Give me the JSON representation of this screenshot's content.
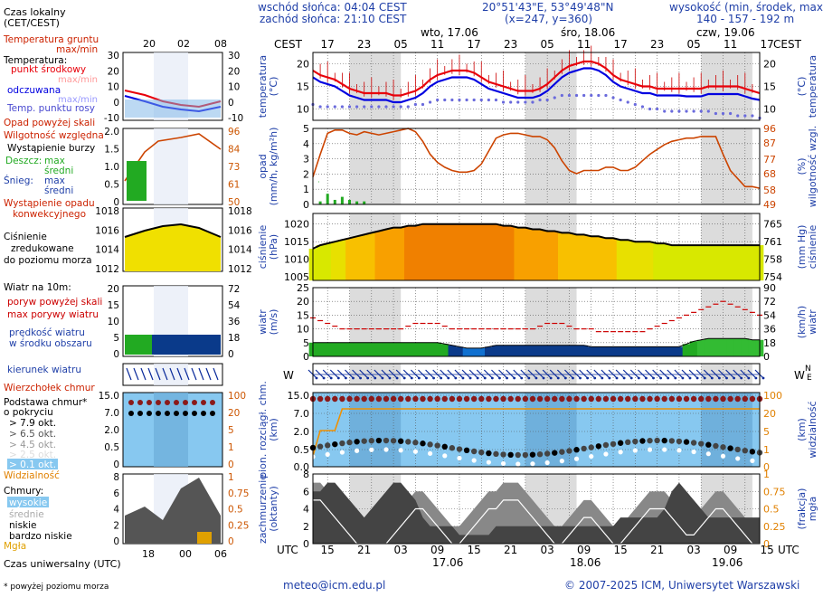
{
  "header": {
    "sunrise": "wschód słońca: 04:04 CEST",
    "sunset": "zachód słońca: 21:10 CEST",
    "coords": "20°51'43\"E, 53°49'48\"N",
    "grid": "(x=247, y=360)",
    "elev_title": "wysokość (min, środek, max)",
    "elev_values": "140 - 157 - 192 m",
    "tz_left": "CEST",
    "tz_right": "CEST",
    "utc_left": "UTC",
    "utc_right": "UTC",
    "days": [
      "wto, 17.06",
      "śro, 18.06",
      "czw, 19.06"
    ],
    "date_labels": [
      "17.06",
      "18.06",
      "19.06"
    ],
    "cest_ticks": [
      "17",
      "23",
      "05",
      "11",
      "17",
      "23",
      "05",
      "11",
      "17",
      "23",
      "05",
      "11",
      "17"
    ],
    "utc_ticks": [
      "15",
      "21",
      "03",
      "09",
      "15",
      "21",
      "03",
      "09",
      "15",
      "21",
      "03",
      "09",
      "15"
    ]
  },
  "legend": {
    "time_local": "Czas lokalny",
    "time_local2": "(CET/CEST)",
    "time_ticks": [
      "20",
      "02",
      "08"
    ],
    "time_utc": "Czas uniwersalny (UTC)",
    "utc_ticks": [
      "18",
      "00",
      "06"
    ],
    "temp_ground": "Temperatura gruntu",
    "temp_ground2": "max/min",
    "temp_title": "Temperatura:",
    "temp_mid": "punkt środkowy",
    "temp_maxmin": "max/min",
    "temp_feel": "odczuwana",
    "temp_feel_maxmin": "max/min",
    "temp_dew": "Temp. punktu rosy",
    "temp_axis_l": [
      "30",
      "20",
      "10",
      "0",
      "-10"
    ],
    "temp_axis_r": [
      "30",
      "20",
      "10",
      "0",
      "-10"
    ],
    "prec_above": "Opad powyżej skali",
    "humidity": "Wilgotność względna",
    "storm": "Wystąpienie burzy",
    "rain": "Deszcz:",
    "rain_max": "max",
    "rain_mid": "średni",
    "snow": "Śnieg:",
    "snow_max": "max",
    "snow_mid": "średni",
    "prec_occ": "Wystąpienie opadu",
    "prec_occ2": "konwekcyjnego",
    "prec_axis_l": [
      "2.0",
      "1.5",
      "1.0",
      "0.5",
      "0"
    ],
    "prec_axis_r": [
      "96",
      "84",
      "73",
      "61",
      "50"
    ],
    "pressure": "Ciśnienie",
    "pressure2": "zredukowane",
    "pressure3": "do poziomu morza",
    "pres_axis_l": [
      "1018",
      "1016",
      "1014",
      "1012"
    ],
    "pres_axis_r": [
      "1018",
      "1016",
      "1014",
      "1012"
    ],
    "wind_title": "Wiatr na 10m:",
    "gust_above": "poryw powyżej skali",
    "gust_max": "max porywy wiatru",
    "wind_speed": "prędkość wiatru",
    "wind_speed2": "w środku obszaru",
    "wind_axis_l": [
      "20",
      "15",
      "10",
      "5",
      "0"
    ],
    "wind_axis_r": [
      "72",
      "54",
      "36",
      "18",
      "0"
    ],
    "wind_dir": "kierunek wiatru",
    "cloud_top": "Wierzchołek chmur",
    "cloud_base": "Podstawa chmur*",
    "cloud_base2": "o pokryciu",
    "okt": [
      "> 7.9 okt.",
      "> 6.5 okt.",
      "> 4.5 okt.",
      "> 2.5 okt.",
      "> 0.1 okt."
    ],
    "visibility": "Widzialność",
    "cb_axis_l": [
      "15.0",
      "7.0",
      "2.0",
      "0.5",
      "0"
    ],
    "cb_axis_r": [
      "100",
      "20",
      "5",
      "1",
      "0"
    ],
    "clouds": "Chmury:",
    "cloud_high": "wysokie",
    "cloud_mid": "średnie",
    "cloud_low": "niskie",
    "cloud_vlow": "bardzo niskie",
    "fog": "Mgła",
    "cl_axis_l": [
      "8",
      "6",
      "4",
      "2",
      "0"
    ],
    "cl_axis_r": [
      "1",
      "0.75",
      "0.5",
      "0.25",
      "0"
    ],
    "footnote": "* powyżej poziomu morza"
  },
  "axes": {
    "temp_label": "temperatura",
    "temp_unit": "(°C)",
    "temp_ticks": [
      "20",
      "15",
      "10"
    ],
    "prec_label": "opad",
    "prec_unit": "(mm/h, kg/m²h)",
    "prec_ticks": [
      "5",
      "4",
      "3",
      "2",
      "1",
      "0"
    ],
    "hum_label": "wilgotność wzgl.",
    "hum_unit": "(%)",
    "hum_ticks": [
      "96",
      "87",
      "77",
      "68",
      "58",
      "49"
    ],
    "pres_label": "ciśnienie",
    "pres_unit": "(hPa)",
    "pres_ticks": [
      "1020",
      "1015",
      "1010",
      "1005"
    ],
    "presmm_label": "ciśnienie",
    "presmm_unit": "(mm Hg)",
    "presmm_ticks": [
      "765",
      "761",
      "758",
      "754"
    ],
    "wind_label": "wiatr",
    "wind_unit": "(m/s)",
    "wind_ticks": [
      "25",
      "20",
      "15",
      "10",
      "5",
      "0"
    ],
    "windkm_label": "wiatr",
    "windkm_unit": "(km/h)",
    "windkm_ticks": [
      "90",
      "72",
      "54",
      "36",
      "18",
      "0"
    ],
    "cb_label": "pion. rozciągł. chm.",
    "cb_unit": "(km)",
    "cb_ticks": [
      "15.0",
      "7.0",
      "2.0",
      "0.5",
      "0.0"
    ],
    "vis_label": "widzialność",
    "vis_unit": "(km)",
    "vis_ticks": [
      "100",
      "20",
      "5",
      "1",
      "0"
    ],
    "cov_label": "zachmurzenie",
    "cov_unit": "(oktanty)",
    "cov_ticks": [
      "8",
      "6",
      "4",
      "2",
      "0"
    ],
    "fog_label": "mgła",
    "fog_unit": "(frakcja)",
    "fog_ticks": [
      "1",
      "0.75",
      "0.5",
      "0.25",
      "0"
    ]
  },
  "footer": {
    "email": "meteo@icm.edu.pl",
    "copyright": "© 2007-2025 ICM, Uniwersytet Warszawski"
  },
  "colors": {
    "temp_mid": "#e8000a",
    "temp_feel": "#0000e0",
    "dew": "#6a6adc",
    "humidity": "#cc4400",
    "rain": "#22aa22",
    "pressure_line": "#000000",
    "gust": "#cc0000",
    "wind_dark": "#0a3a8a",
    "wind_green": "#22aa22",
    "cloud_panel": "#87c8f0",
    "night": "#dcdcdc"
  },
  "chart_data": {
    "type": "line",
    "hours_utc_start": 15,
    "step_hours": 1,
    "series": [
      {
        "name": "temperatura (°C)",
        "values": [
          18.5,
          17.5,
          17,
          16.5,
          15.5,
          14.5,
          14,
          13.5,
          13.5,
          13.5,
          13.5,
          13,
          13,
          13.5,
          14,
          15,
          16.5,
          17.5,
          18,
          18.5,
          18.5,
          18.5,
          18,
          17,
          16,
          15.5,
          15,
          14.5,
          14,
          14,
          14,
          14.5,
          15.5,
          17,
          18.5,
          19.5,
          20,
          20.5,
          20.5,
          20,
          19,
          17.5,
          16.5,
          16,
          15.5,
          15,
          15,
          14.5,
          14.5,
          14.5,
          14.5,
          14.5,
          14.5,
          14.5,
          15,
          15,
          15,
          15,
          15,
          14.5,
          14,
          13.5
        ]
      },
      {
        "name": "temperatura odczuwana (°C)",
        "values": [
          17,
          16,
          15.5,
          15,
          14,
          13,
          12.5,
          12,
          12,
          12,
          12,
          11.5,
          11.5,
          12,
          12.5,
          13.5,
          15,
          16,
          16.5,
          17,
          17,
          17,
          16.5,
          15.5,
          14.5,
          14,
          13.5,
          13,
          12.5,
          12.5,
          12.5,
          13,
          14,
          15.5,
          17,
          18,
          18.5,
          19,
          19,
          18.5,
          17.5,
          16,
          15,
          14.5,
          14,
          13.5,
          13.5,
          13,
          13,
          13,
          13,
          12.8,
          12.8,
          12.8,
          13.3,
          13.3,
          13.3,
          13.3,
          13.3,
          12.8,
          12.3,
          12
        ]
      },
      {
        "name": "temperatura punktu rosy (°C)",
        "values": [
          11,
          10.5,
          10.5,
          10.5,
          10.5,
          10.5,
          10.5,
          10.5,
          10.5,
          10.5,
          10.5,
          10.5,
          10.5,
          10.5,
          11,
          11,
          11.5,
          12,
          12,
          12,
          12,
          12,
          12,
          12,
          12,
          12,
          11.5,
          11.5,
          11.5,
          11.5,
          11.5,
          12,
          12,
          12.5,
          13,
          13,
          13,
          13,
          13,
          13,
          13,
          12.5,
          12,
          11.5,
          11,
          10.5,
          10,
          10,
          9.5,
          9.5,
          9.5,
          9.5,
          9.5,
          9.5,
          9.5,
          9,
          9,
          9,
          8.5,
          8.5,
          8.5,
          8
        ]
      },
      {
        "name": "wilgotność względna (%)",
        "values": [
          66,
          80,
          93,
          95,
          95,
          93,
          92,
          94,
          93,
          92,
          93,
          94,
          95,
          96,
          94,
          88,
          80,
          75,
          72,
          70,
          69,
          69,
          70,
          74,
          82,
          90,
          92,
          93,
          93,
          92,
          91,
          91,
          89,
          84,
          76,
          70,
          68,
          70,
          70,
          70,
          72,
          72,
          70,
          70,
          72,
          76,
          80,
          83,
          86,
          88,
          89,
          90,
          90,
          91,
          91,
          91,
          80,
          70,
          65,
          60,
          60,
          59
        ]
      },
      {
        "name": "ciśnienie (hPa)",
        "values": [
          1013,
          1014,
          1014.5,
          1015,
          1015.5,
          1016,
          1016.5,
          1017,
          1017.5,
          1018,
          1018.5,
          1019,
          1019,
          1019.5,
          1019.5,
          1020,
          1020,
          1020,
          1020,
          1020,
          1020,
          1020,
          1020,
          1020,
          1020,
          1020,
          1019.5,
          1019.5,
          1019,
          1019,
          1018.5,
          1018.5,
          1018,
          1018,
          1017.5,
          1017.5,
          1017,
          1017,
          1016.5,
          1016.5,
          1016,
          1016,
          1015.5,
          1015.5,
          1015,
          1015,
          1015,
          1014.5,
          1014.5,
          1014,
          1014,
          1014,
          1014,
          1014,
          1014,
          1014,
          1014,
          1014,
          1014,
          1014,
          1014,
          1014
        ]
      },
      {
        "name": "prędkość wiatru (m/s)",
        "values": [
          5,
          5,
          5,
          5,
          5,
          5,
          5,
          5,
          5,
          5,
          5,
          5,
          5,
          5,
          5,
          5,
          5,
          5,
          4.5,
          4,
          3.5,
          3,
          3,
          3,
          3.5,
          4,
          4,
          4,
          4,
          4,
          4,
          4,
          4,
          4,
          4,
          4,
          4,
          4,
          3.5,
          3.5,
          3.5,
          3.5,
          3.5,
          3.5,
          3.5,
          3.5,
          3.5,
          3.5,
          3.5,
          3.5,
          3.5,
          4.5,
          5.5,
          6,
          6.5,
          6.5,
          6.5,
          6.5,
          6.5,
          6.5,
          6,
          6
        ]
      },
      {
        "name": "max porywy wiatru (m/s)",
        "values": [
          14,
          13,
          12,
          11,
          10,
          10,
          10,
          10,
          10,
          10,
          10,
          10,
          10,
          11,
          12,
          12,
          12,
          12,
          11,
          10,
          10,
          10,
          10,
          10,
          10,
          10,
          10,
          10,
          10,
          10,
          10,
          11,
          12,
          12,
          12,
          11,
          10,
          10,
          10,
          9,
          9,
          9,
          9,
          9,
          9,
          9,
          10,
          11,
          12,
          13,
          14,
          15,
          16,
          17,
          18,
          19,
          20,
          19,
          18,
          17,
          16,
          15
        ]
      },
      {
        "name": "opad (mm/h)",
        "values": [
          0,
          0.2,
          0.7,
          0.3,
          0.5,
          0.3,
          0.2,
          0.2,
          0,
          0,
          0,
          0,
          0,
          0,
          0,
          0,
          0,
          0,
          0,
          0,
          0,
          0,
          0,
          0,
          0,
          0,
          0,
          0,
          0,
          0,
          0,
          0,
          0,
          0,
          0,
          0,
          0,
          0,
          0,
          0,
          0,
          0,
          0,
          0,
          0,
          0,
          0,
          0,
          0,
          0,
          0,
          0,
          0,
          0,
          0,
          0,
          0,
          0,
          0,
          0,
          0,
          0
        ]
      },
      {
        "name": "widzialność (km)",
        "values": [
          0.6,
          5,
          5,
          5,
          20,
          22,
          22,
          22,
          22,
          22,
          22,
          22,
          22,
          22,
          22,
          22,
          22,
          22,
          22,
          22,
          22,
          22,
          22,
          22,
          22,
          22,
          22,
          22,
          22,
          22,
          22,
          22,
          22,
          22,
          22,
          22,
          22,
          22,
          22,
          22,
          22,
          22,
          22,
          22,
          22,
          22,
          22,
          22,
          22,
          22,
          22,
          22,
          22,
          22,
          22,
          22,
          22,
          22,
          22,
          22,
          22,
          22
        ]
      },
      {
        "name": "zachmurzenie wysokie (oktanty)",
        "values": [
          7,
          7,
          6,
          5,
          4,
          3,
          2,
          2,
          1,
          1,
          2,
          3,
          4,
          5,
          6,
          6,
          5,
          4,
          3,
          2,
          2,
          3,
          4,
          5,
          6,
          6,
          7,
          7,
          7,
          6,
          5,
          4,
          3,
          2,
          2,
          3,
          4,
          5,
          5,
          4,
          3,
          2,
          2,
          3,
          4,
          5,
          6,
          6,
          6,
          5,
          4,
          3,
          3,
          4,
          5,
          6,
          6,
          5,
          4,
          3,
          2,
          2
        ]
      },
      {
        "name": "zachmurzenie niskie (oktanty)",
        "values": [
          6,
          6,
          7,
          7,
          6,
          5,
          4,
          3,
          4,
          5,
          6,
          7,
          7,
          6,
          5,
          3,
          2,
          2,
          2,
          2,
          1,
          1,
          1,
          1,
          1,
          2,
          2,
          2,
          2,
          2,
          2,
          2,
          2,
          2,
          2,
          2,
          2,
          2,
          2,
          2,
          2,
          2,
          3,
          3,
          3,
          3,
          3,
          3,
          4,
          6,
          7,
          6,
          5,
          4,
          3,
          3,
          3,
          3,
          3,
          3,
          3,
          3
        ]
      }
    ],
    "panels": [
      "temperatura",
      "opad",
      "ciśnienie",
      "wiatr",
      "kierunek wiatru",
      "podstawa chmur",
      "zachmurzenie"
    ]
  }
}
